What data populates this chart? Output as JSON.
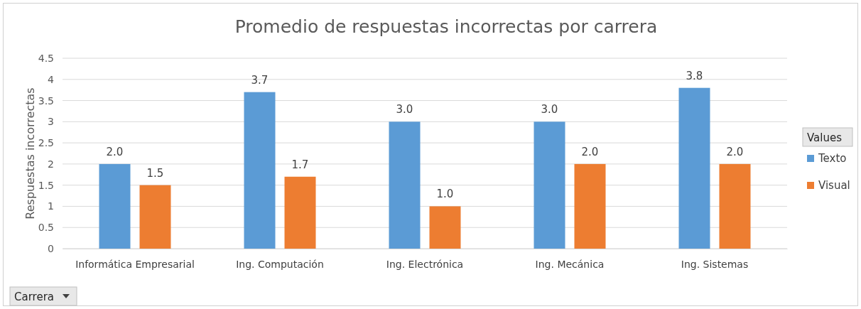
{
  "chart_data": {
    "type": "bar",
    "title": "Promedio de respuestas incorrectas por carrera",
    "ylabel": "Respuestas incorrectas",
    "xlabel": "Carrera",
    "legend_title": "Values",
    "categories": [
      "Informática Empresarial",
      "Ing. Computación",
      "Ing. Electrónica",
      "Ing. Mecánica",
      "Ing. Sistemas"
    ],
    "series": [
      {
        "name": "Texto",
        "color": "#5b9bd5",
        "values": [
          2.0,
          3.7,
          3.0,
          3.0,
          3.8
        ],
        "value_labels": [
          "2.0",
          "3.7",
          "3.0",
          "3.0",
          "3.8"
        ]
      },
      {
        "name": "Visual",
        "color": "#ed7d31",
        "values": [
          1.5,
          1.7,
          1.0,
          2.0,
          2.0
        ],
        "value_labels": [
          "1.5",
          "1.7",
          "1.0",
          "2.0",
          "2.0"
        ]
      }
    ],
    "ylim": [
      0,
      4.5
    ],
    "yticks": [
      0,
      0.5,
      1,
      1.5,
      2,
      2.5,
      3,
      3.5,
      4,
      4.5
    ],
    "grid": "y",
    "legend": "right"
  }
}
